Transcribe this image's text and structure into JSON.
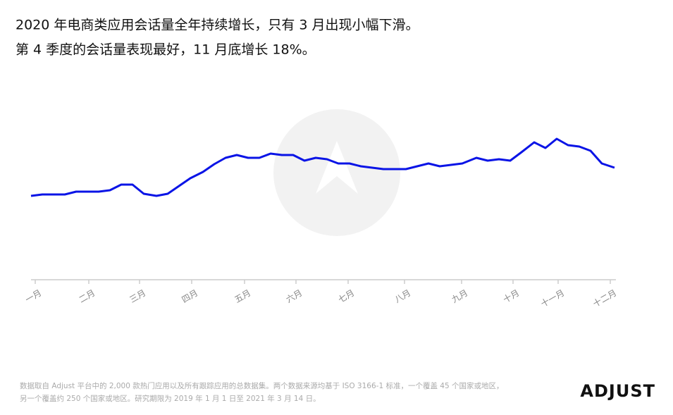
{
  "chart_data": {
    "type": "line",
    "title_lines": [
      "2020 年电商类应用会话量全年持续增长，只有 3 月出现小幅下滑。",
      "第 4 季度的会话量表现最好，11 月底增长 18%。"
    ],
    "x": [
      0,
      16,
      32,
      48,
      64,
      80,
      96,
      112,
      128,
      144,
      160,
      178,
      194,
      210,
      226,
      244,
      260,
      276,
      292,
      308,
      324,
      340,
      356,
      372,
      388,
      404,
      420,
      436,
      452,
      468,
      484,
      500,
      516,
      532,
      548,
      564,
      580,
      596,
      612,
      632,
      648,
      664,
      680,
      696,
      714,
      730,
      746,
      762,
      778,
      794,
      810,
      828
    ],
    "series": [
      {
        "color": "#0a14e6",
        "values": [
          119,
          121,
          121,
          121,
          125,
          125,
          125,
          127,
          135,
          135,
          122,
          119,
          122,
          133,
          144,
          153,
          164,
          173,
          177,
          173,
          173,
          179,
          177,
          177,
          169,
          173,
          171,
          165,
          165,
          161,
          159,
          157,
          157,
          157,
          161,
          165,
          161,
          163,
          165,
          173,
          169,
          171,
          169,
          181,
          195,
          187,
          200,
          191,
          189,
          183,
          165,
          159
        ]
      }
    ],
    "xlim": [
      0,
      830
    ],
    "ylim": [
      0,
      280
    ],
    "xticks": [
      {
        "value": 6,
        "label": "一月"
      },
      {
        "value": 82,
        "label": "二月"
      },
      {
        "value": 154,
        "label": "三月"
      },
      {
        "value": 228,
        "label": "四月"
      },
      {
        "value": 303,
        "label": "五月"
      },
      {
        "value": 376,
        "label": "六月"
      },
      {
        "value": 450,
        "label": "七月"
      },
      {
        "value": 530,
        "label": "八月"
      },
      {
        "value": 611,
        "label": "九月"
      },
      {
        "value": 684,
        "label": "十月"
      },
      {
        "value": 748,
        "label": "十一月"
      },
      {
        "value": 822,
        "label": "十二月"
      }
    ],
    "note_lines": [
      "数据取自 Adjust 平台中的 2,000 款热门应用以及所有跟踪应用的总数据集。两个数据来源均基于 ISO 3166-1 标准，一个覆盖 45 个国家或地区，",
      "另一个覆盖约 250 个国家或地区。研究期限为 2019 年 1 月 1 日至 2021 年 3 月 14 日。"
    ],
    "brand": "ADJUST"
  }
}
